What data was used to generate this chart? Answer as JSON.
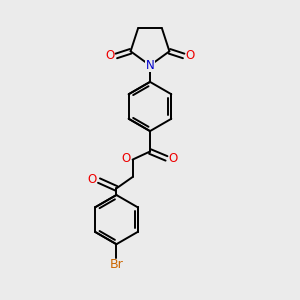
{
  "bg_color": "#ebebeb",
  "bond_color": "#000000",
  "bond_width": 1.4,
  "N_color": "#0000cc",
  "O_color": "#ee0000",
  "Br_color": "#cc6600",
  "font_size": 8.5,
  "fig_size": [
    3.0,
    3.0
  ],
  "dpi": 100,
  "xlim": [
    0,
    10
  ],
  "ylim": [
    0,
    10
  ]
}
